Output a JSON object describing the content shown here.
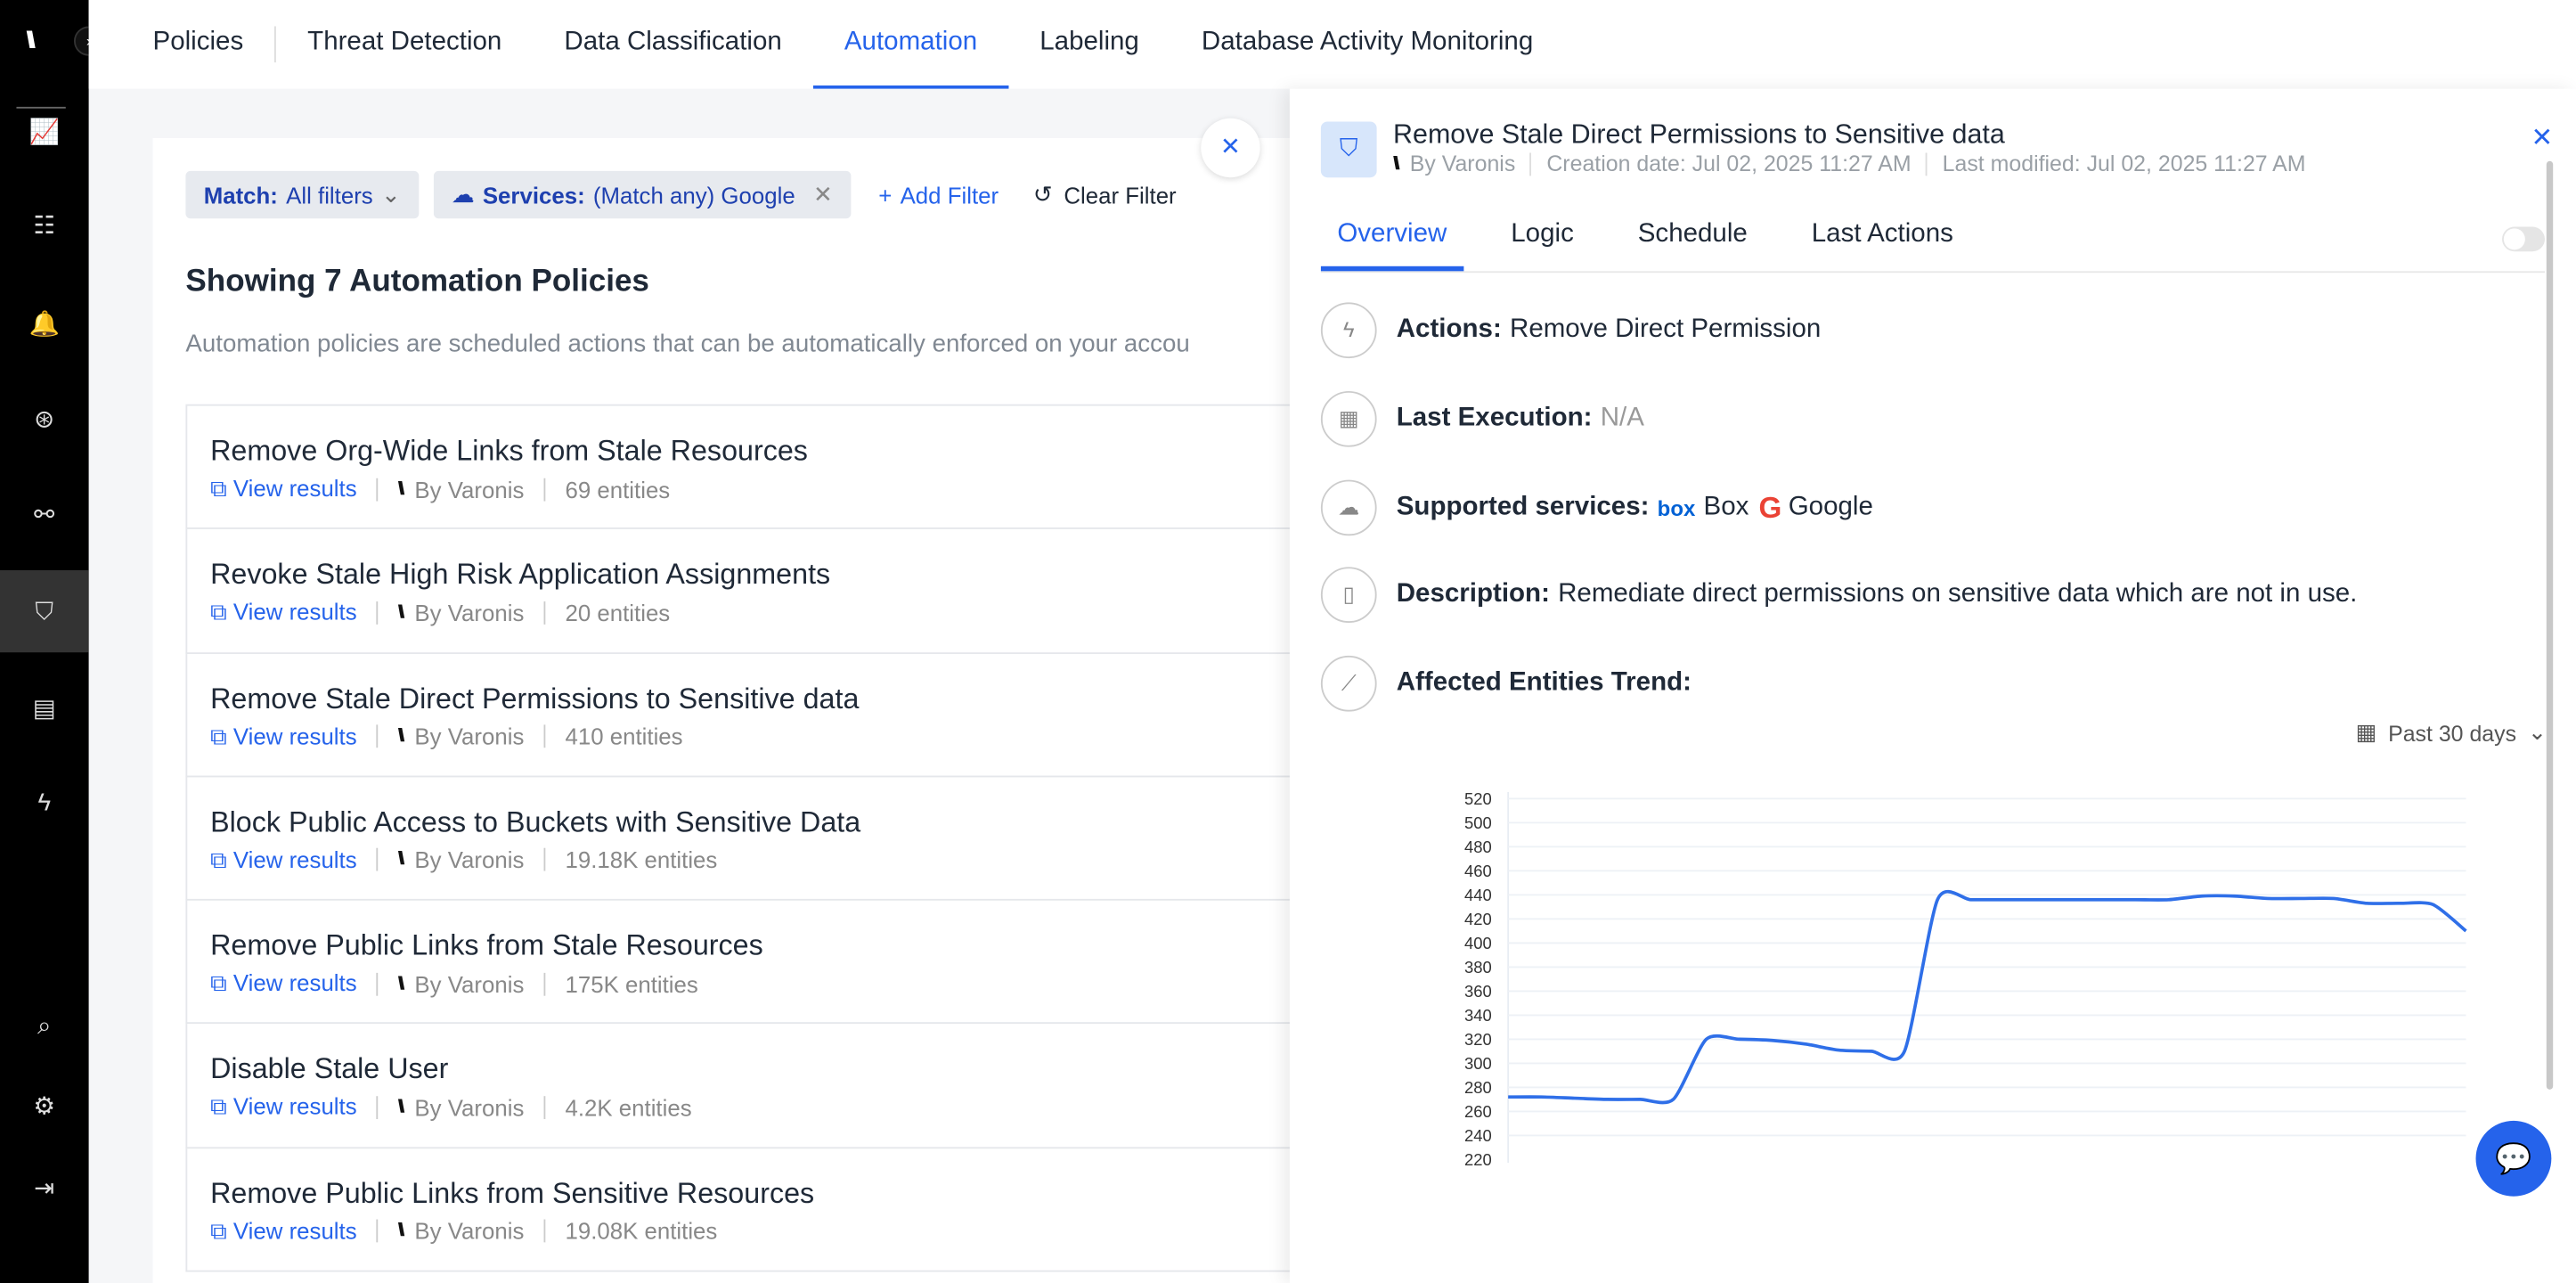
{
  "sidebar": {
    "logo": "W",
    "expand": "›",
    "items": [
      {
        "icon": "dashboard-icon",
        "glyph": "📈"
      },
      {
        "icon": "filters-icon",
        "glyph": "☷"
      },
      {
        "icon": "bell-icon",
        "glyph": "🔔"
      },
      {
        "icon": "threat-icon",
        "glyph": "⊛"
      },
      {
        "icon": "graph-icon",
        "glyph": "⚯"
      },
      {
        "icon": "shield-check-icon",
        "glyph": "⛉"
      },
      {
        "icon": "report-icon",
        "glyph": "▤"
      },
      {
        "icon": "lightning-icon",
        "glyph": "ϟ"
      },
      {
        "icon": "search-icon",
        "glyph": "⌕"
      },
      {
        "icon": "gear-icon",
        "glyph": "⚙"
      },
      {
        "icon": "logout-icon",
        "glyph": "⇥"
      }
    ]
  },
  "nav": {
    "tabs": [
      "Policies",
      "Threat Detection",
      "Data Classification",
      "Automation",
      "Labeling",
      "Database Activity Monitoring"
    ],
    "active": "Automation"
  },
  "filters": {
    "match_label": "Match:",
    "match_value": "All filters",
    "services_label": "Services:",
    "services_value": "(Match any) Google",
    "add": "Add Filter",
    "clear": "Clear Filter"
  },
  "main": {
    "heading": "Showing 7 Automation Policies",
    "description": "Automation policies are scheduled actions that can be automatically enforced on your accou",
    "view_results": "View results",
    "by": "By Varonis",
    "policies": [
      {
        "title": "Remove Org-Wide Links from Stale Resources",
        "entities": "69 entities"
      },
      {
        "title": "Revoke Stale High Risk Application Assignments",
        "entities": "20 entities"
      },
      {
        "title": "Remove Stale Direct Permissions to Sensitive data",
        "entities": "410 entities"
      },
      {
        "title": "Block Public Access to Buckets with Sensitive Data",
        "entities": "19.18K entities"
      },
      {
        "title": "Remove Public Links from Stale Resources",
        "entities": "175K entities"
      },
      {
        "title": "Disable Stale User",
        "entities": "4.2K entities"
      },
      {
        "title": "Remove Public Links from Sensitive Resources",
        "entities": "19.08K entities"
      }
    ]
  },
  "panel": {
    "title": "Remove Stale Direct Permissions to Sensitive data",
    "by": "By Varonis",
    "created": "Creation date: Jul 02, 2025 11:27 AM",
    "modified": "Last modified: Jul 02, 2025 11:27 AM",
    "tabs": [
      "Overview",
      "Logic",
      "Schedule",
      "Last Actions"
    ],
    "active_tab": "Overview",
    "enabled": false,
    "actions_label": "Actions:",
    "actions_value": "Remove Direct Permission",
    "last_exec_label": "Last Execution:",
    "last_exec_value": "N/A",
    "services_label": "Supported services:",
    "services": [
      "Box",
      "Google"
    ],
    "box_logo": "box",
    "desc_label": "Description:",
    "desc_value": "Remediate direct permissions on sensitive data which are not in use.",
    "trend_label": "Affected Entities Trend:",
    "range": "Past 30 days"
  },
  "chart_data": {
    "type": "line",
    "title": "",
    "xlabel": "",
    "ylabel": "",
    "ylim": [
      220,
      520
    ],
    "yticks": [
      220,
      240,
      260,
      280,
      300,
      320,
      340,
      360,
      380,
      400,
      420,
      440,
      460,
      480,
      500,
      520
    ],
    "grid": true,
    "color": "#2f6fe8",
    "values": [
      272,
      272,
      271,
      270,
      270,
      270,
      320,
      320,
      319,
      316,
      311,
      310,
      310,
      436,
      436,
      436,
      436,
      436,
      436,
      436,
      436,
      439,
      439,
      437,
      437,
      437,
      433,
      433,
      432,
      410
    ]
  }
}
